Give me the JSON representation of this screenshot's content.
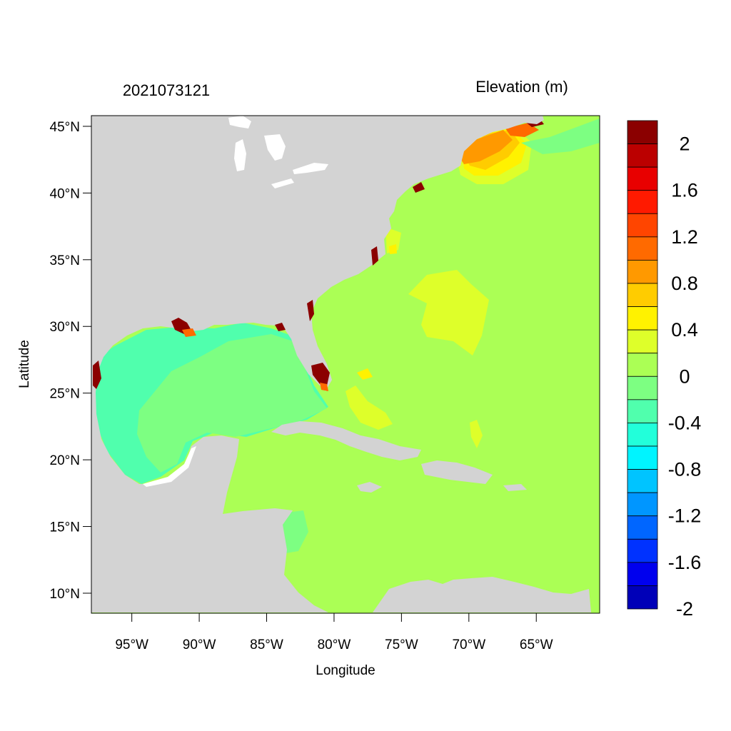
{
  "title_left": "2021073121",
  "title_right": "Elevation (m)",
  "x_axis": {
    "label": "Longitude",
    "ticks": [
      "95°W",
      "90°W",
      "85°W",
      "80°W",
      "75°W",
      "70°W",
      "65°W"
    ],
    "tick_values": [
      -95,
      -90,
      -85,
      -80,
      -75,
      -70,
      -65
    ],
    "range": [
      -98,
      -60.3
    ]
  },
  "y_axis": {
    "label": "Latitude",
    "ticks": [
      "10°N",
      "15°N",
      "20°N",
      "25°N",
      "30°N",
      "35°N",
      "40°N",
      "45°N"
    ],
    "tick_values": [
      10,
      15,
      20,
      25,
      30,
      35,
      40,
      45
    ],
    "range": [
      8.5,
      45.8
    ]
  },
  "colorbar": {
    "labels": [
      "2",
      "1.6",
      "1.2",
      "0.8",
      "0.4",
      "0",
      "-0.4",
      "-0.8",
      "-1.2",
      "-1.6",
      "-2"
    ],
    "colors": [
      "#8b0000",
      "#bb0000",
      "#e80000",
      "#ff1a00",
      "#ff4500",
      "#ff6a00",
      "#ff9900",
      "#ffcc00",
      "#fff200",
      "#deff2a",
      "#abff55",
      "#7dff82",
      "#50ffad",
      "#22ffda",
      "#00f4ff",
      "#00c4ff",
      "#0096ff",
      "#0066ff",
      "#0032ff",
      "#0000ee",
      "#0000b8"
    ]
  },
  "colors": {
    "land": "#d3d3d3",
    "ocean_base": "#abff55",
    "gulf": "#50ffad"
  }
}
